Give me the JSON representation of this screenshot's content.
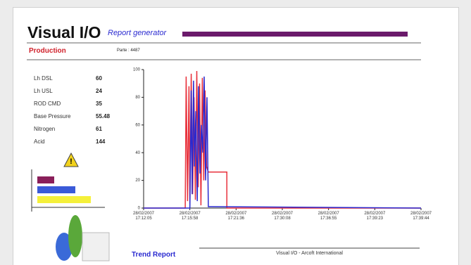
{
  "header": {
    "title": "Visual I/O",
    "subtitle": "Report generator",
    "section": "Production",
    "parts": "Parte : 4487"
  },
  "parameters": [
    {
      "label": "Lh DSL",
      "value": "60"
    },
    {
      "label": "Lh USL",
      "value": "24"
    },
    {
      "label": "ROD CMD",
      "value": "35"
    },
    {
      "label": "Base Pressure",
      "value": "55.48"
    },
    {
      "label": "Nitrogen",
      "value": "61"
    },
    {
      "label": "Acid",
      "value": "144"
    }
  ],
  "chart": {
    "type": "line",
    "ylim": [
      0,
      100
    ],
    "yticks": [
      0,
      20,
      40,
      60,
      80,
      100
    ],
    "xlim": [
      0,
      6
    ],
    "xticks": [
      {
        "value": 0,
        "label": "28/02/2007\n17:12:05"
      },
      {
        "value": 1,
        "label": "28/02/2007\n17:15:58"
      },
      {
        "value": 2,
        "label": "28/02/2007\n17:21:36"
      },
      {
        "value": 3,
        "label": "28/02/2007\n17:30:08"
      },
      {
        "value": 4,
        "label": "28/02/2007\n17:36:55"
      },
      {
        "value": 5,
        "label": "28/02/2007\n17:39:23"
      },
      {
        "value": 6,
        "label": "28/02/2007\n17:39:44"
      }
    ],
    "series": [
      {
        "color": "#e8323c",
        "x": [
          0,
          0.9,
          0.92,
          0.95,
          0.98,
          1.0,
          1.03,
          1.06,
          1.09,
          1.12,
          1.15,
          1.18,
          1.21,
          1.24,
          1.27,
          1.3,
          1.33,
          1.36,
          1.4,
          1.4,
          1.8,
          1.8,
          6
        ],
        "values": [
          0,
          0,
          95,
          5,
          88,
          3,
          97,
          10,
          80,
          6,
          99,
          15,
          90,
          2,
          94,
          20,
          85,
          30,
          26,
          26,
          26,
          0,
          0
        ]
      },
      {
        "color": "#2a2ad0",
        "x": [
          0,
          1.0,
          1.03,
          1.05,
          1.08,
          1.1,
          1.13,
          1.16,
          1.19,
          1.22,
          1.25,
          1.28,
          1.31,
          1.34,
          1.37,
          1.4,
          1.45,
          6
        ],
        "values": [
          0,
          0,
          85,
          10,
          92,
          30,
          70,
          5,
          88,
          25,
          60,
          40,
          95,
          20,
          80,
          1,
          1,
          0
        ]
      }
    ]
  },
  "footer": {
    "report": "Trend Report",
    "company": "Visual I/O - Arcoft International"
  }
}
